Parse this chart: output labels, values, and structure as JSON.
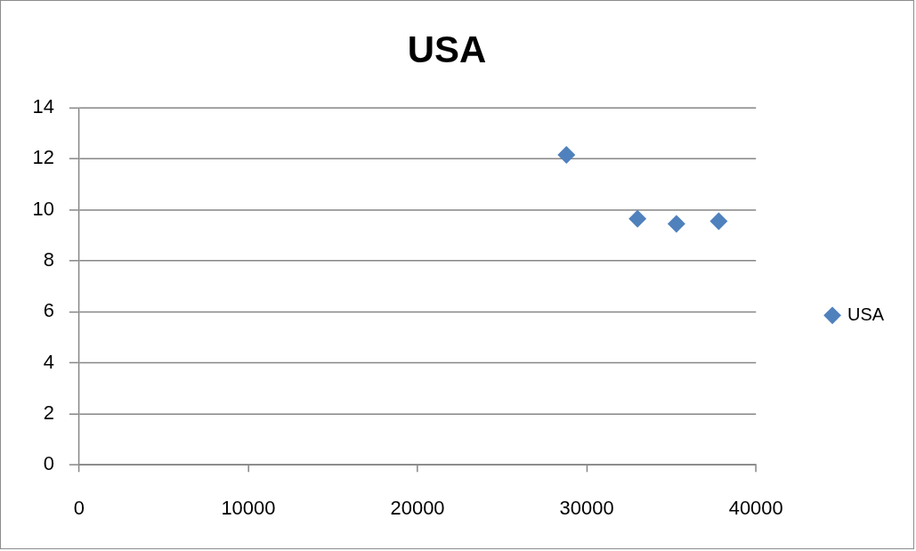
{
  "chart_data": {
    "type": "scatter",
    "title": "USA",
    "series": [
      {
        "name": "USA",
        "color": "#4f81bd",
        "x": [
          28800,
          33000,
          35300,
          37800
        ],
        "values": [
          12.15,
          9.65,
          9.45,
          9.55
        ]
      }
    ],
    "xlim": [
      0,
      40000
    ],
    "xticks": [
      0,
      10000,
      20000,
      30000,
      40000
    ],
    "ylim": [
      0,
      14
    ],
    "yticks": [
      0,
      2,
      4,
      6,
      8,
      10,
      12,
      14
    ],
    "grid": "y",
    "legend": "right",
    "marker": "diamond"
  }
}
